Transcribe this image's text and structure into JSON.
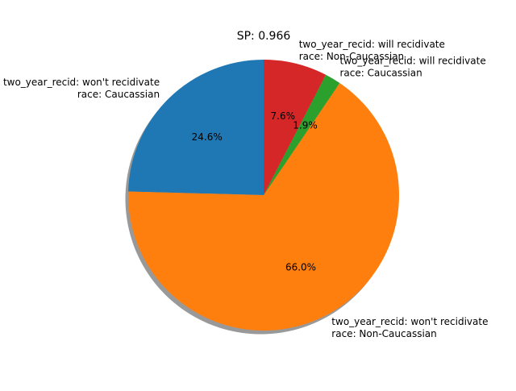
{
  "chart_data": {
    "type": "pie",
    "title": "SP: 0.966",
    "shadow": true,
    "start_angle_deg": 90,
    "direction": "counterclockwise",
    "slices": [
      {
        "label_lines": [
          "two_year_recid: won't recidivate",
          "race: Caucassian"
        ],
        "percent": 24.6,
        "pct_label": "24.6%",
        "color": "#1f77b4"
      },
      {
        "label_lines": [
          "two_year_recid: won't recidivate",
          "race: Non-Caucassian"
        ],
        "percent": 66.0,
        "pct_label": "66.0%",
        "color": "#ff7f0e"
      },
      {
        "label_lines": [
          "two_year_recid: will recidivate",
          "race: Caucassian"
        ],
        "percent": 1.9,
        "pct_label": "1.9%",
        "color": "#2ca02c"
      },
      {
        "label_lines": [
          "two_year_recid: will recidivate",
          "race: Non-Caucassian"
        ],
        "percent": 7.6,
        "pct_label": "7.6%",
        "color": "#d62728"
      }
    ]
  }
}
